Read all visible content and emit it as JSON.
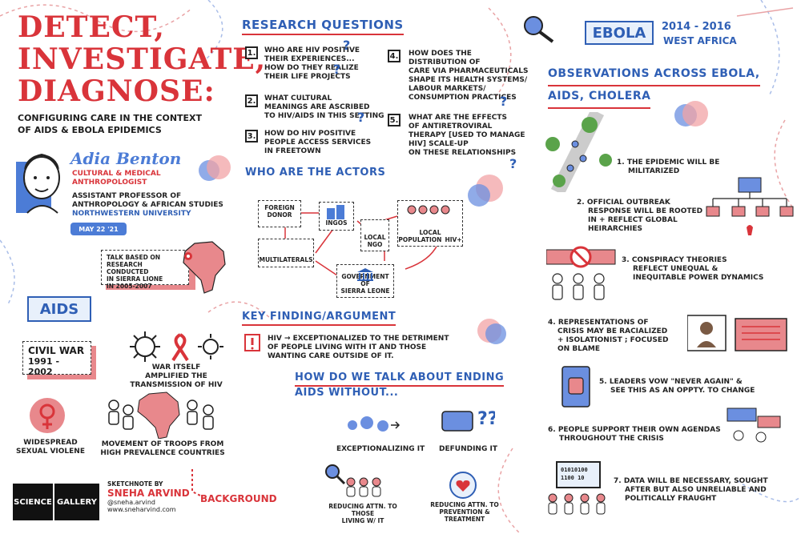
{
  "title": {
    "line1": "DETECT,",
    "line2": "INVESTIGATE,",
    "line3": "DIAGNOSE:",
    "subtitle_line1": "CONFIGURING CARE IN THE CONTEXT",
    "subtitle_line2": "OF AIDS & EBOLA EPIDEMICS"
  },
  "speaker": {
    "name": "Adia Benton",
    "role1": "CULTURAL & MEDICAL",
    "role2": "ANTHROPOLOGIST",
    "position1": "ASSISTANT PROFESSOR OF",
    "position2": "ANTHROPOLOGY & AFRICAN STUDIES",
    "university": "NORTHWESTERN UNIVERSITY",
    "date": "MAY 22 '21"
  },
  "talk_note": {
    "line1": "TALK BASED ON",
    "line2": "RESEARCH CONDUCTED",
    "line3": "IN SIERRA LIONE",
    "line4": "IN 2005-2007"
  },
  "aids": {
    "banner": "AIDS",
    "civil_war_line1": "CIVIL WAR",
    "civil_war_line2": "1991 - 2002",
    "war_note_line1": "WAR ITSELF",
    "war_note_line2": "AMPLIFIED THE",
    "war_note_line3": "TRANSMISSION OF HIV",
    "violence_line1": "WIDESPREAD",
    "violence_line2": "SEXUAL VIOLENE",
    "troops_line1": "MOVEMENT OF TROOPS FROM",
    "troops_line2": "HIGH PREVALENCE COUNTRIES"
  },
  "footer": {
    "logo_left": "SCIENCE",
    "logo_right": "GALLERY",
    "sketch_by": "SKETCHNOTE BY",
    "artist": "SNEHA ARVIND",
    "handle": "@sneha.arvind",
    "site": "www.sneharvind.com",
    "background_label": "BACKGROUND"
  },
  "research": {
    "heading": "RESEARCH QUESTIONS",
    "q1_num": "1.",
    "q1_l1": "WHO ARE HIV POSITIVE",
    "q1_l2": "THEIR EXPERIENCES...",
    "q1_l3": "HOW DO THEY REALIZE",
    "q1_l4": "THEIR LIFE PROJECTS",
    "q2_num": "2.",
    "q2_l1": "WHAT CULTURAL",
    "q2_l2": "MEANINGS ARE ASCRIBED",
    "q2_l3": "TO HIV/AIDS IN THIS SETTING",
    "q3_num": "3.",
    "q3_l1": "HOW DO HIV POSITIVE",
    "q3_l2": "PEOPLE ACCESS SERVICES",
    "q3_l3": "IN FREETOWN",
    "q4_num": "4.",
    "q4_l1": "HOW DOES THE",
    "q4_l2": "DISTRIBUTION OF",
    "q4_l3": "CARE VIA PHARMACEUTICALS",
    "q4_l4": "SHAPE ITS HEALTH SYSTEMS/",
    "q4_l5": "LABOUR MARKETS/",
    "q4_l6": "CONSUMPTION PRACTICES",
    "q5_num": "5.",
    "q5_l1": "WHAT ARE THE EFFECTS",
    "q5_l2": "OF ANTIRETROVIRAL",
    "q5_l3": "THERAPY [USED TO MANAGE",
    "q5_l4": "HIV] SCALE-UP",
    "q5_l5": "ON THESE RELATIONSHIPS"
  },
  "actors": {
    "heading": "WHO ARE THE ACTORS",
    "donor_l1": "FOREIGN",
    "donor_l2": "DONOR",
    "multilaterals": "MULTILATERALS",
    "ingos": "INGOs",
    "local_ngo_l1": "LOCAL",
    "local_ngo_l2": "NGO",
    "local_pop_l1": "LOCAL",
    "local_pop_l2": "POPULATION",
    "hiv_plus": "HIV+",
    "gov_l1": "GOVERNMENT OF",
    "gov_l2": "SIERRA LEONE"
  },
  "key_finding": {
    "heading": "KEY FINDING/ARGUMENT",
    "l1": "HIV → EXCEPTIONALIZED TO THE DETRIMENT",
    "l2": "OF PEOPLE LIVING WITH IT AND THOSE",
    "l3": "WANTING CARE OUTSIDE OF IT."
  },
  "ending": {
    "heading_l1": "HOW DO WE TALK ABOUT ENDING",
    "heading_l2": "AIDS WITHOUT...",
    "item1": "EXCEPTIONALIZING IT",
    "item2": "DEFUNDING IT",
    "item3_l1": "REDUCING ATTN. TO THOSE",
    "item3_l2": "LIVING W/ IT",
    "item4_l1": "REDUCING ATTN. TO",
    "item4_l2": "PREVENTION &",
    "item4_l3": "TREATMENT"
  },
  "ebola": {
    "banner": "EBOLA",
    "years": "2014 - 2016",
    "region": "WEST AFRICA",
    "obs_heading_l1": "OBSERVATIONS ACROSS EBOLA,",
    "obs_heading_l2": "AIDS, CHOLERA",
    "o1_l1": "1. THE EPIDEMIC WILL BE",
    "o1_l2": "MILITARIZED",
    "o2_l1": "2. OFFICIAL OUTBREAK",
    "o2_l2": "RESPONSE WILL BE ROOTED",
    "o2_l3": "IN + REFLECT GLOBAL",
    "o2_l4": "HEIRARCHIES",
    "o3_l1": "3. CONSPIRACY THEORIES",
    "o3_l2": "REFLECT UNEQUAL &",
    "o3_l3": "INEQUITABLE POWER DYNAMICS",
    "o4_l1": "4. REPRESENTATIONS OF",
    "o4_l2": "CRISIS MAY BE RACIALIZED",
    "o4_l3": "+ ISOLATIONIST ; FOCUSED",
    "o4_l4": "ON BLAME",
    "o5_l1": "5. LEADERS VOW \"NEVER AGAIN\" &",
    "o5_l2": "SEE THIS AS AN OPPTY. TO CHANGE",
    "o6_l1": "6. PEOPLE SUPPORT THEIR OWN AGENDAS",
    "o6_l2": "THROUGHOUT THE CRISIS",
    "o7_l1": "7. DATA WILL BE NECESSARY, SOUGHT",
    "o7_l2": "AFTER BUT ALSO UNRELIABLE AND",
    "o7_l3": "POLITICALLY FRAUGHT",
    "binary_l1": "01010100",
    "binary_l2": "1100 10"
  },
  "colors": {
    "accent_red": "#d9343a",
    "accent_blue": "#2f5fb5",
    "pink": "#e8888c"
  }
}
